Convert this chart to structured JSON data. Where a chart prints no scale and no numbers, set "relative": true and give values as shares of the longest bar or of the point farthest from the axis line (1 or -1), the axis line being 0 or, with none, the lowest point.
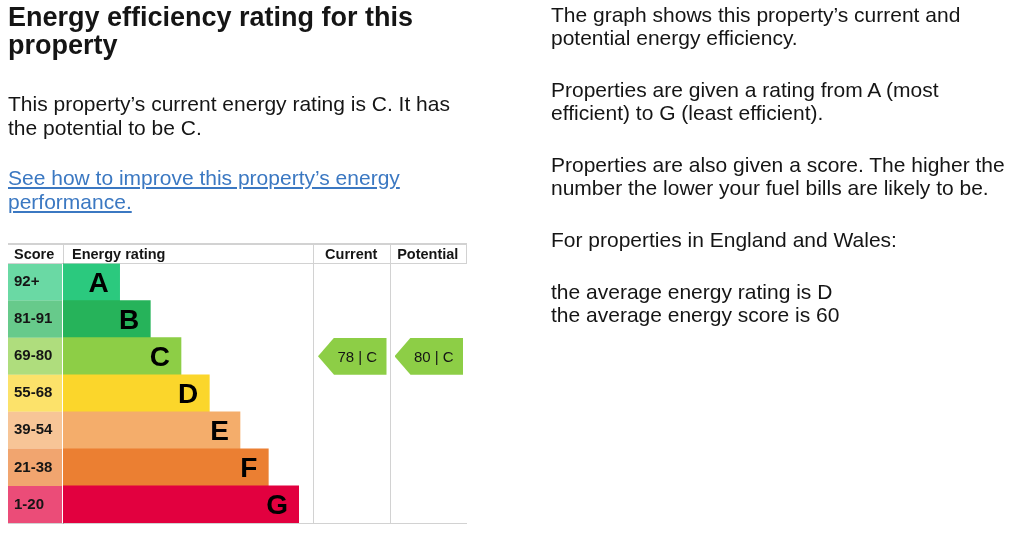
{
  "chart_data": {
    "type": "bar",
    "orientation": "horizontal",
    "relative": true,
    "title": "Energy efficiency rating for this property",
    "subtitle": "This property’s current energy rating is C. It has the potential to be C.",
    "ylabel": "Score",
    "xlabel": "Energy rating",
    "categories": [
      "92+",
      "81-91",
      "69-80",
      "55-68",
      "39-54",
      "21-38",
      "1-20"
    ],
    "values": [
      0.24,
      0.37,
      0.5,
      0.62,
      0.75,
      0.87,
      1
    ],
    "colors": [
      "#2bc97e",
      "#26b35a",
      "#8dce46",
      "#fbd62b",
      "#f4ad6b",
      "#eb7f32",
      "#e2003f"
    ],
    "annotations": [
      "See how to improve this property’s energy performance.",
      {
        "text": "A",
        "x": 0.24,
        "y": "92+"
      },
      {
        "text": "B",
        "x": 0.37,
        "y": "81-91"
      },
      {
        "text": "C",
        "x": 0.5,
        "y": "69-80"
      },
      {
        "text": "D",
        "x": 0.62,
        "y": "55-68"
      },
      {
        "text": "E",
        "x": 0.75,
        "y": "39-54"
      },
      {
        "text": "F",
        "x": 0.87,
        "y": "21-38"
      },
      {
        "text": "G",
        "x": 1,
        "y": "1-20"
      },
      "Current",
      "Potential",
      "78 | C",
      "80 | C",
      "The graph shows this property’s current and potential energy efficiency.",
      "Properties are given a rating from A (most efficient) to G (least efficient).",
      "Properties are also given a score. The higher the number the lower your fuel bills are likely to be.",
      "For properties in England and Wales:",
      "the average energy rating is D\nthe average energy score is 60"
    ]
  }
}
